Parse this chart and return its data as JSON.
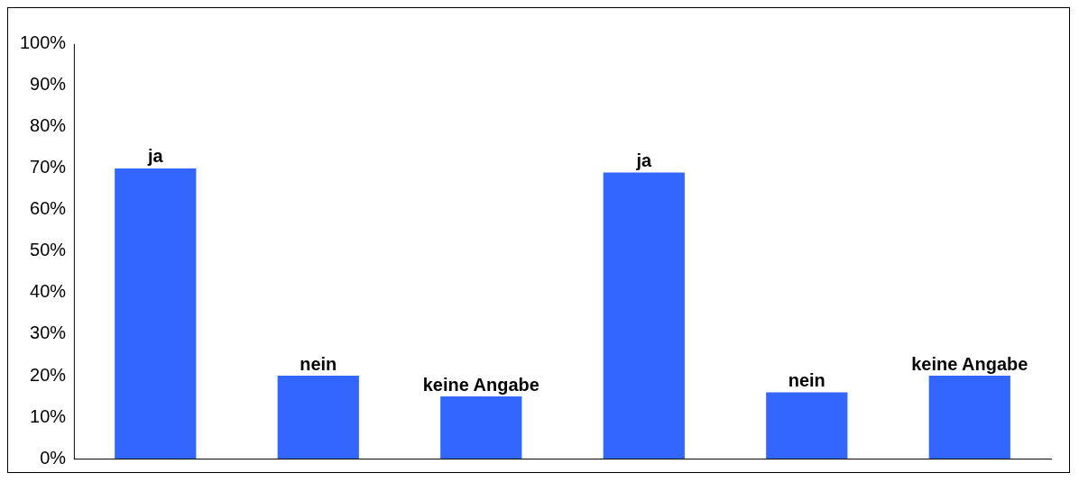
{
  "chart_data": {
    "type": "bar",
    "categories": [
      "ja",
      "nein",
      "keine Angabe",
      "ja",
      "nein",
      "keine Angabe"
    ],
    "values": [
      70,
      20,
      15,
      69,
      16,
      20
    ],
    "color": "#3366ff",
    "ylim": [
      0,
      100
    ],
    "yticks": [
      {
        "value": 0,
        "label": "0%"
      },
      {
        "value": 10,
        "label": "10%"
      },
      {
        "value": 20,
        "label": "20%"
      },
      {
        "value": 30,
        "label": "30%"
      },
      {
        "value": 40,
        "label": "40%"
      },
      {
        "value": 50,
        "label": "50%"
      },
      {
        "value": 60,
        "label": "60%"
      },
      {
        "value": 70,
        "label": "70%"
      },
      {
        "value": 80,
        "label": "80%"
      },
      {
        "value": 90,
        "label": "90%"
      },
      {
        "value": 100,
        "label": "100%"
      }
    ],
    "tick_labels": "y",
    "grid": false,
    "legend": false
  }
}
